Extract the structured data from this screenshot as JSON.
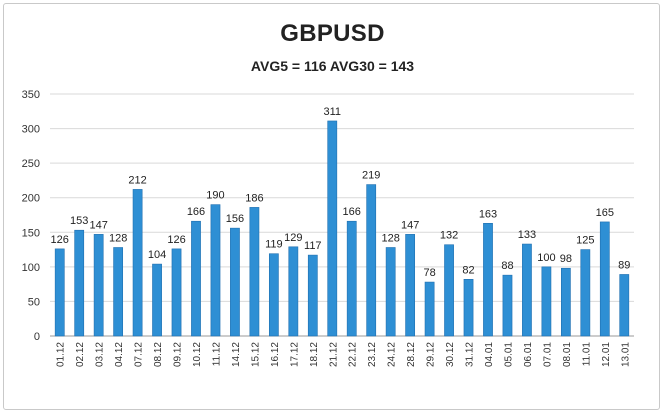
{
  "chart_data": {
    "type": "bar",
    "title": "GBPUSD",
    "subtitle": "AVG5 = 116 AVG30 = 143",
    "categories": [
      "01.12",
      "02.12",
      "03.12",
      "04.12",
      "07.12",
      "08.12",
      "09.12",
      "10.12",
      "11.12",
      "14.12",
      "15.12",
      "16.12",
      "17.12",
      "18.12",
      "21.12",
      "22.12",
      "23.12",
      "24.12",
      "28.12",
      "29.12",
      "30.12",
      "31.12",
      "04.01",
      "05.01",
      "06.01",
      "07.01",
      "08.01",
      "11.01",
      "12.01",
      "13.01"
    ],
    "values": [
      126,
      153,
      147,
      128,
      212,
      104,
      126,
      166,
      190,
      156,
      186,
      119,
      129,
      117,
      311,
      166,
      219,
      128,
      147,
      78,
      132,
      82,
      163,
      88,
      133,
      100,
      98,
      125,
      165,
      89
    ],
    "ylim": [
      0,
      350
    ],
    "yticks": [
      0,
      50,
      100,
      150,
      200,
      250,
      300,
      350
    ],
    "grid": true,
    "legend": "none",
    "bar_color": "#2e8fd4",
    "bar_edge_color": "#1f6fb0"
  }
}
